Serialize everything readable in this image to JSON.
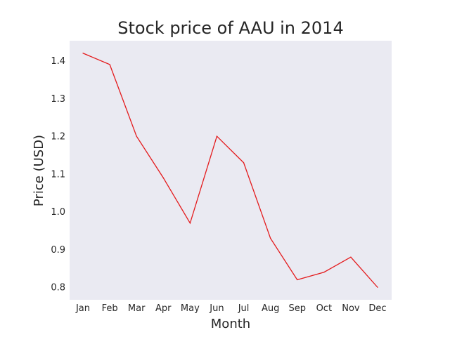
{
  "chart_data": {
    "type": "line",
    "title": "Stock price of AAU in 2014",
    "xlabel": "Month",
    "ylabel": "Price (USD)",
    "categories": [
      "Jan",
      "Feb",
      "Mar",
      "Apr",
      "May",
      "Jun",
      "Jul",
      "Aug",
      "Sep",
      "Oct",
      "Nov",
      "Dec"
    ],
    "series": [
      {
        "values": [
          1.42,
          1.39,
          1.2,
          1.09,
          0.97,
          1.2,
          1.13,
          0.93,
          0.82,
          0.84,
          0.88,
          0.8
        ],
        "color": "#e41a1c"
      }
    ],
    "yticks": [
      "0.8",
      "0.9",
      "1.0",
      "1.1",
      "1.2",
      "1.3",
      "1.4"
    ],
    "ylim": [
      0.767,
      1.453
    ],
    "grid": false,
    "background": "#eaeaf2"
  }
}
